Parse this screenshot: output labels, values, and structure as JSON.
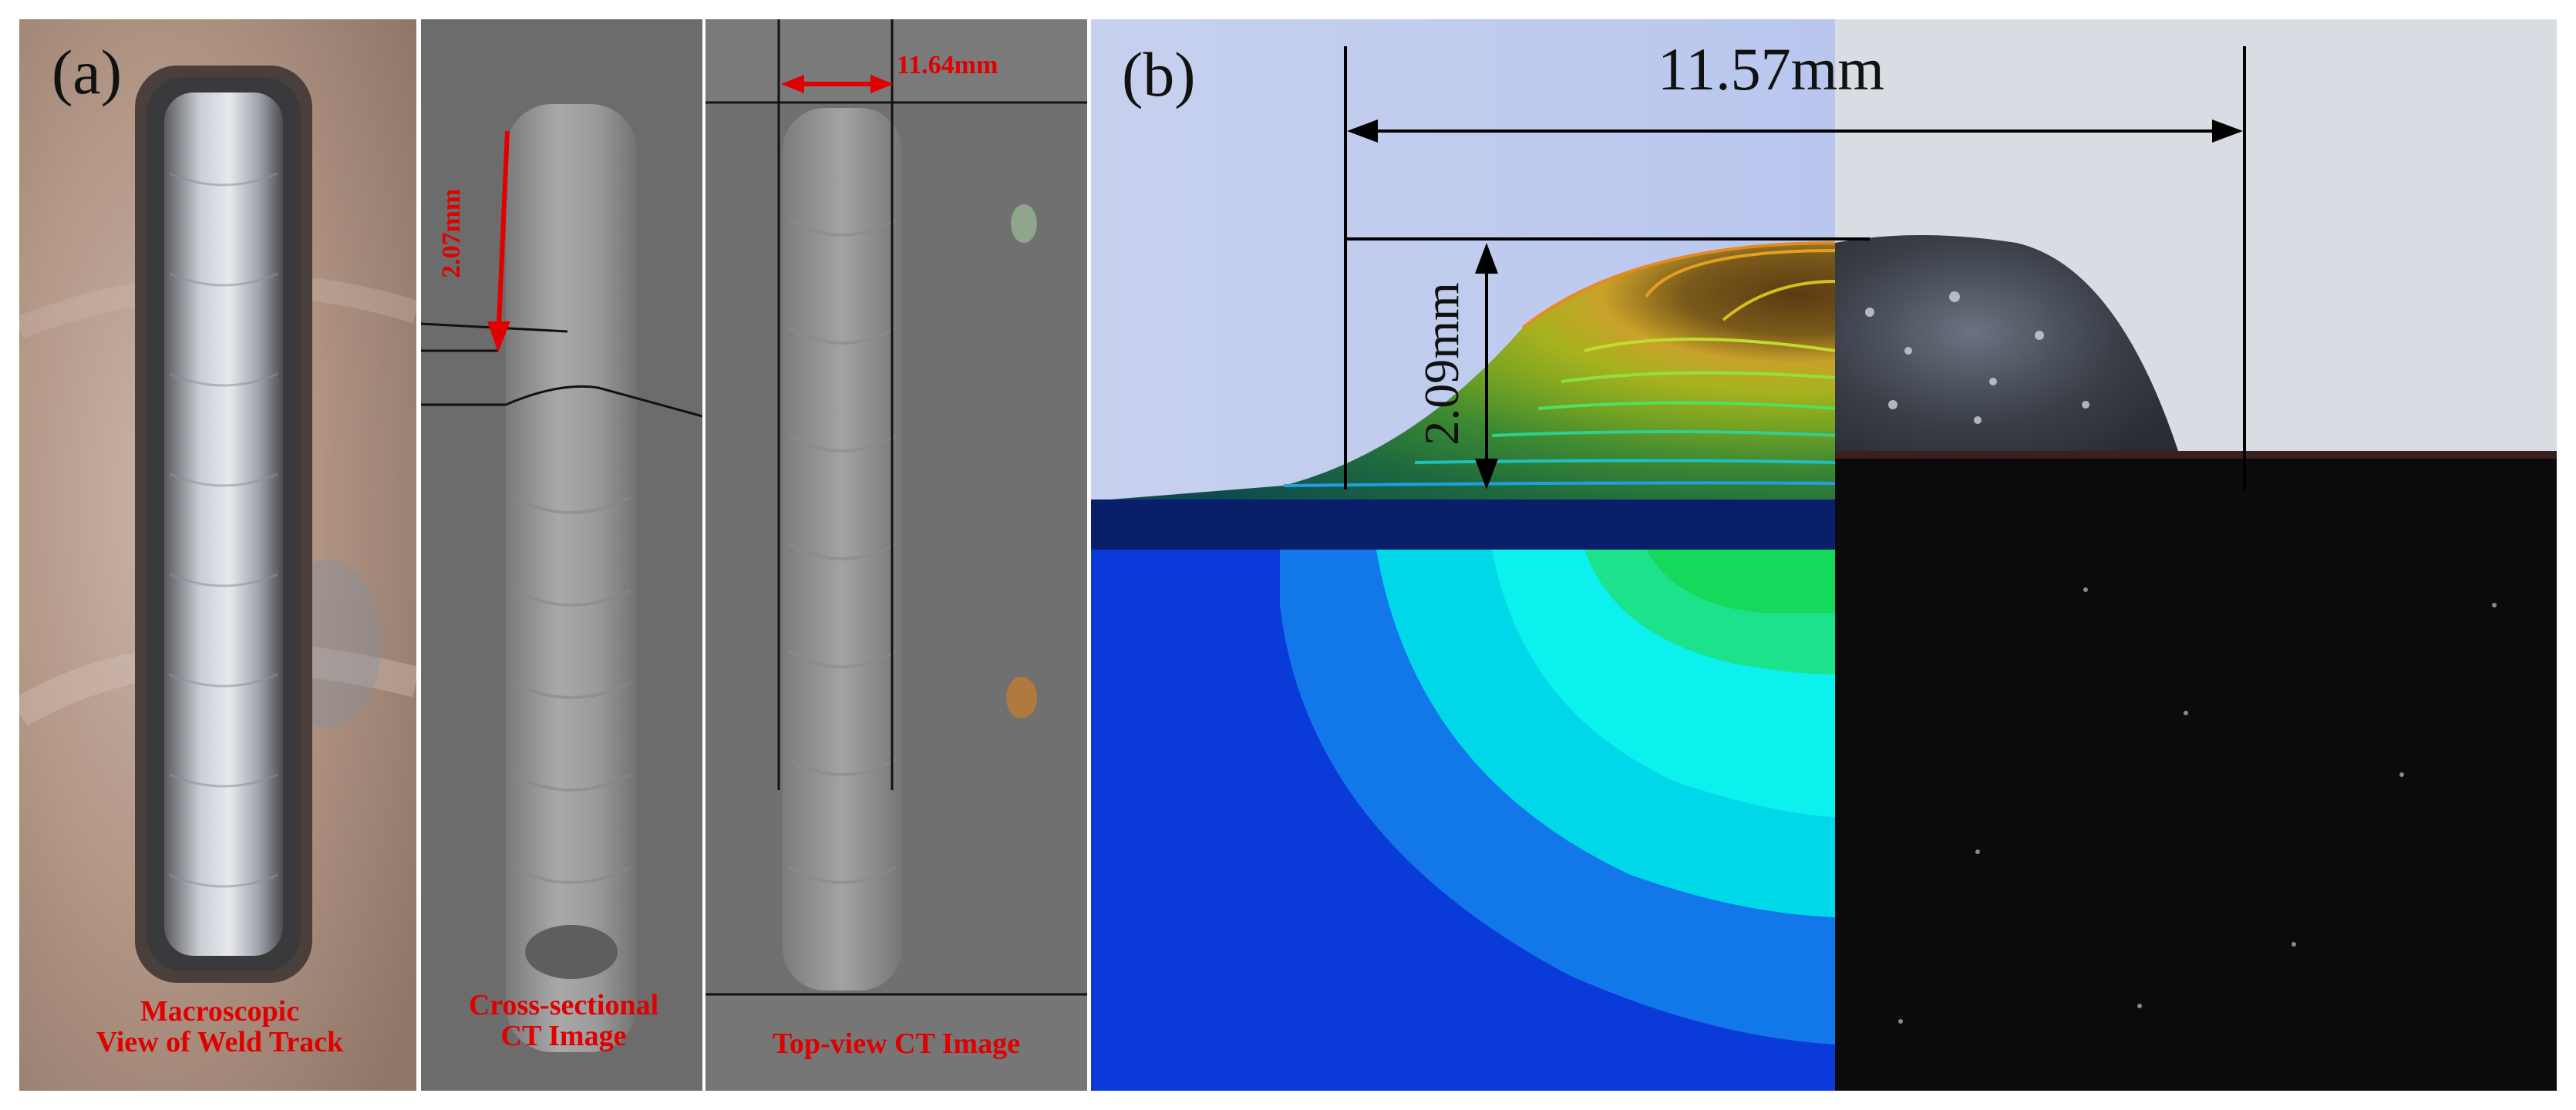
{
  "panel_a": {
    "letter": "(a)",
    "photo": {
      "caption_line1": "Macroscopic",
      "caption_line2": "View of Weld Track"
    },
    "cross_section_ct": {
      "measurement": "2.07mm",
      "caption_line1": "Cross-sectional",
      "caption_line2": "CT Image"
    },
    "top_view_ct": {
      "measurement": "11.64mm",
      "caption": "Top-view CT Image"
    }
  },
  "panel_b": {
    "letter": "(b)",
    "width_measurement": "11.57mm",
    "height_measurement": "2.09mm"
  },
  "colors": {
    "annotation_red": "#e00000",
    "sim_background": "#c9d3ee",
    "sim_substrate_top": "#08206e",
    "ct_gray": "#6a6a6a",
    "micrograph_dark": "#0b0b0b"
  }
}
